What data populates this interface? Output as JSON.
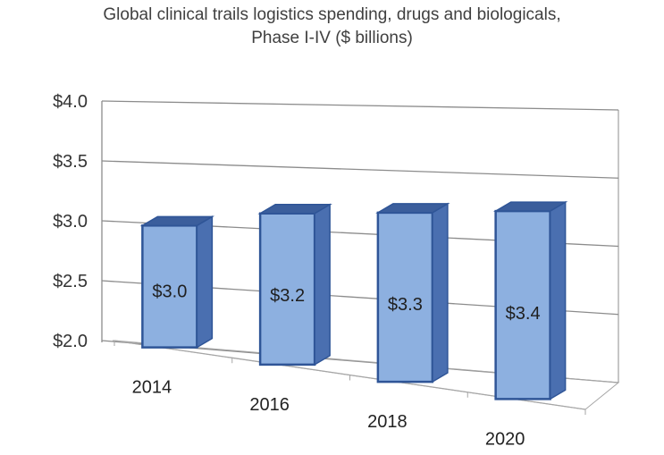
{
  "chart_data": {
    "type": "bar",
    "title_lines": [
      "Global clinical trails logistics spending, drugs and biologicals,",
      "Phase I-IV ($ billions)"
    ],
    "categories": [
      "2014",
      "2016",
      "2018",
      "2020"
    ],
    "values": [
      3.0,
      3.2,
      3.3,
      3.4
    ],
    "data_labels": [
      "$3.0",
      "$3.2",
      "$3.3",
      "$3.4"
    ],
    "ylim": [
      2.0,
      4.0
    ],
    "ytick_values": [
      2.0,
      2.5,
      3.0,
      3.5,
      4.0
    ],
    "ytick_labels": [
      "$2.0",
      "$2.5",
      "$3.0",
      "$3.5",
      "$4.0"
    ],
    "xlabel": "",
    "ylabel": "",
    "grid": true,
    "style": "3d-column",
    "colors": {
      "bar_front": "#8db0e0",
      "bar_side": "#4a6fb0",
      "bar_top": "#3b5e9c",
      "bar_edge": "#2f5597",
      "grid": "#8c8c8c"
    }
  }
}
